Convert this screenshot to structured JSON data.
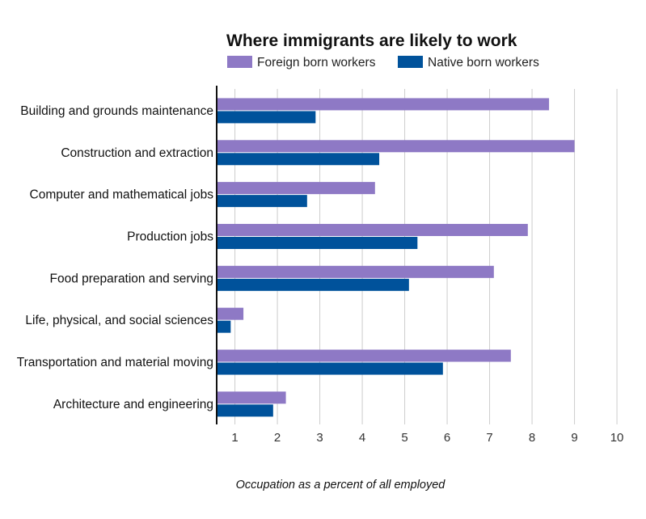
{
  "chart_data": {
    "type": "bar",
    "orientation": "horizontal",
    "title": "Where immigrants are likely to work",
    "xlabel": "Occupation as a percent of all employed",
    "ylabel": "",
    "categories": [
      "Building and grounds maintenance",
      "Construction and extraction",
      "Computer and mathematical jobs",
      "Production jobs",
      "Food preparation and serving",
      "Life, physical, and social sciences",
      "Transportation and material moving",
      "Architecture and engineering"
    ],
    "series": [
      {
        "name": "Foreign born workers",
        "color": "#8e79c5",
        "values": [
          8.4,
          9.0,
          4.3,
          7.9,
          7.1,
          1.2,
          7.5,
          2.2
        ]
      },
      {
        "name": "Native born workers",
        "color": "#00529b",
        "values": [
          2.9,
          4.4,
          2.7,
          5.3,
          5.1,
          0.9,
          5.9,
          1.9
        ]
      }
    ],
    "xticks": [
      "1",
      "2",
      "3",
      "4",
      "5",
      "6",
      "7",
      "8",
      "9",
      "10"
    ],
    "xlim": [
      0.57,
      10.1
    ],
    "grid": true,
    "legend_position": "top"
  }
}
